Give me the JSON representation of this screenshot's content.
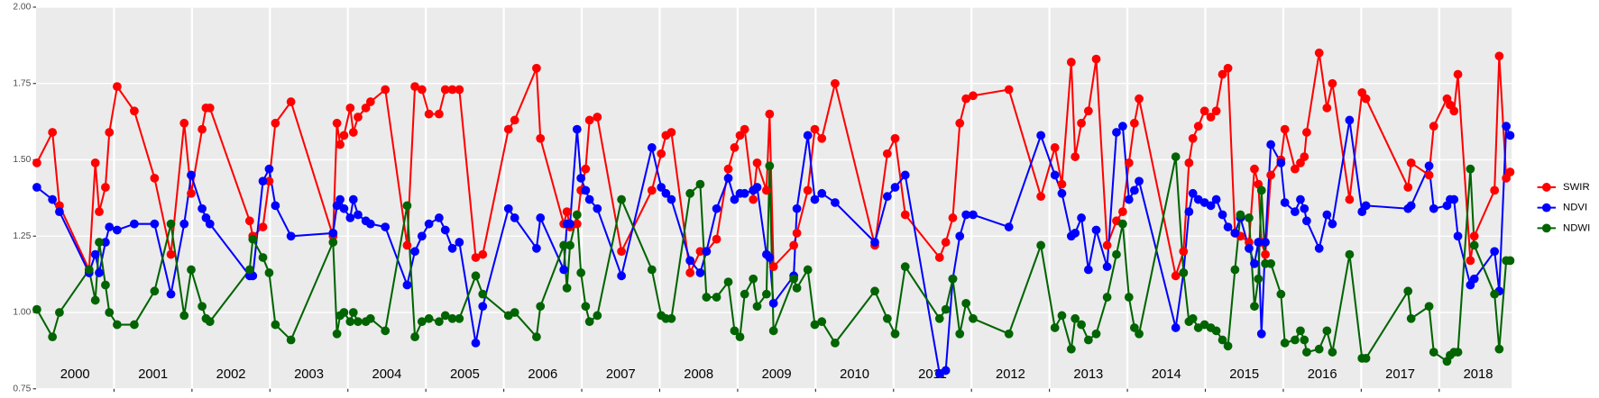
{
  "chart_data": {
    "type": "line",
    "x": [
      2000.01,
      2000.21,
      2000.3,
      2000.68,
      2000.76,
      2000.81,
      2000.89,
      2000.94,
      2001.04,
      2001.26,
      2001.52,
      2001.73,
      2001.9,
      2001.99,
      2002.13,
      2002.18,
      2002.23,
      2002.74,
      2002.78,
      2002.91,
      2002.99,
      2003.07,
      2003.27,
      2003.81,
      2003.86,
      2003.9,
      2003.95,
      2004.03,
      2004.07,
      2004.13,
      2004.23,
      2004.29,
      2004.48,
      2004.76,
      2004.86,
      2004.95,
      2005.04,
      2005.17,
      2005.25,
      2005.34,
      2005.43,
      2005.64,
      2005.73,
      2006.06,
      2006.14,
      2006.42,
      2006.47,
      2006.77,
      2006.81,
      2006.85,
      2006.94,
      2006.99,
      2007.05,
      2007.1,
      2007.2,
      2007.51,
      2007.9,
      2008.02,
      2008.08,
      2008.15,
      2008.39,
      2008.52,
      2008.6,
      2008.73,
      2008.88,
      2008.96,
      2009.03,
      2009.09,
      2009.2,
      2009.25,
      2009.37,
      2009.41,
      2009.46,
      2009.72,
      2009.76,
      2009.9,
      2009.99,
      2010.08,
      2010.25,
      2010.76,
      2010.92,
      2011.02,
      2011.15,
      2011.59,
      2011.67,
      2011.76,
      2011.85,
      2011.93,
      2012.02,
      2012.48,
      2012.89,
      2013.07,
      2013.16,
      2013.28,
      2013.33,
      2013.41,
      2013.5,
      2013.6,
      2013.74,
      2013.86,
      2013.94,
      2014.02,
      2014.09,
      2014.15,
      2014.62,
      2014.72,
      2014.79,
      2014.84,
      2014.91,
      2014.99,
      2015.07,
      2015.14,
      2015.22,
      2015.29,
      2015.38,
      2015.45,
      2015.56,
      2015.63,
      2015.68,
      2015.72,
      2015.77,
      2015.84,
      2015.97,
      2016.02,
      2016.15,
      2016.22,
      2016.27,
      2016.3,
      2016.46,
      2016.56,
      2016.63,
      2016.85,
      2017.01,
      2017.06,
      2017.6,
      2017.64,
      2017.87,
      2017.93,
      2018.1,
      2018.14,
      2018.19,
      2018.24,
      2018.4,
      2018.45,
      2018.71,
      2018.77,
      2018.86,
      2018.91
    ],
    "series": [
      {
        "name": "SWIR",
        "color": "#ff0000",
        "values": [
          1.49,
          1.59,
          1.35,
          1.14,
          1.49,
          1.33,
          1.41,
          1.59,
          1.74,
          1.66,
          1.44,
          1.19,
          1.62,
          1.39,
          1.6,
          1.67,
          1.67,
          1.3,
          1.25,
          1.28,
          1.43,
          1.62,
          1.69,
          1.25,
          1.62,
          1.55,
          1.58,
          1.67,
          1.59,
          1.64,
          1.67,
          1.69,
          1.73,
          1.22,
          1.74,
          1.73,
          1.65,
          1.65,
          1.73,
          1.73,
          1.73,
          1.18,
          1.19,
          1.6,
          1.63,
          1.8,
          1.57,
          1.29,
          1.33,
          1.28,
          1.29,
          1.4,
          1.47,
          1.63,
          1.64,
          1.2,
          1.4,
          1.52,
          1.58,
          1.59,
          1.13,
          1.2,
          1.2,
          1.24,
          1.47,
          1.54,
          1.58,
          1.6,
          1.37,
          1.49,
          1.4,
          1.65,
          1.15,
          1.22,
          1.26,
          1.4,
          1.6,
          1.57,
          1.75,
          1.22,
          1.52,
          1.57,
          1.32,
          1.18,
          1.23,
          1.31,
          1.62,
          1.7,
          1.71,
          1.73,
          1.38,
          1.54,
          1.42,
          1.82,
          1.51,
          1.62,
          1.66,
          1.83,
          1.22,
          1.3,
          1.33,
          1.49,
          1.62,
          1.7,
          1.12,
          1.2,
          1.49,
          1.57,
          1.61,
          1.66,
          1.64,
          1.66,
          1.78,
          1.8,
          1.26,
          1.25,
          1.23,
          1.47,
          1.42,
          1.23,
          1.19,
          1.45,
          1.5,
          1.6,
          1.47,
          1.49,
          1.51,
          1.59,
          1.85,
          1.67,
          1.75,
          1.37,
          1.72,
          1.7,
          1.41,
          1.49,
          1.45,
          1.61,
          1.7,
          1.68,
          1.66,
          1.78,
          1.17,
          1.25,
          1.4,
          1.84,
          1.44,
          1.46
        ]
      },
      {
        "name": "NDVI",
        "color": "#0000ff",
        "values": [
          1.41,
          1.37,
          1.33,
          1.13,
          1.19,
          1.13,
          1.23,
          1.28,
          1.27,
          1.29,
          1.29,
          1.06,
          1.29,
          1.45,
          1.34,
          1.31,
          1.29,
          1.12,
          1.12,
          1.43,
          1.47,
          1.35,
          1.25,
          1.26,
          1.35,
          1.37,
          1.34,
          1.31,
          1.37,
          1.32,
          1.3,
          1.29,
          1.28,
          1.09,
          1.2,
          1.25,
          1.29,
          1.31,
          1.27,
          1.21,
          1.23,
          0.9,
          1.02,
          1.34,
          1.31,
          1.21,
          1.31,
          1.14,
          1.29,
          1.29,
          1.6,
          1.44,
          1.4,
          1.37,
          1.34,
          1.12,
          1.54,
          1.41,
          1.39,
          1.37,
          1.17,
          1.13,
          1.2,
          1.34,
          1.44,
          1.37,
          1.39,
          1.39,
          1.4,
          1.41,
          1.19,
          1.18,
          1.03,
          1.12,
          1.34,
          1.58,
          1.37,
          1.39,
          1.36,
          1.23,
          1.38,
          1.41,
          1.45,
          0.8,
          0.81,
          1.11,
          1.25,
          1.32,
          1.32,
          1.28,
          1.58,
          1.45,
          1.39,
          1.25,
          1.26,
          1.31,
          1.14,
          1.27,
          1.15,
          1.59,
          1.61,
          1.37,
          1.4,
          1.43,
          0.95,
          1.13,
          1.33,
          1.39,
          1.37,
          1.36,
          1.35,
          1.37,
          1.32,
          1.28,
          1.26,
          1.31,
          1.21,
          1.16,
          1.23,
          0.93,
          1.23,
          1.55,
          1.49,
          1.36,
          1.33,
          1.37,
          1.34,
          1.3,
          1.21,
          1.32,
          1.29,
          1.63,
          1.33,
          1.35,
          1.34,
          1.35,
          1.48,
          1.34,
          1.35,
          1.37,
          1.37,
          1.25,
          1.09,
          1.11,
          1.2,
          1.07,
          1.61,
          1.58
        ]
      },
      {
        "name": "NDWI",
        "color": "#006400",
        "values": [
          1.01,
          0.92,
          1.0,
          1.14,
          1.04,
          1.23,
          1.09,
          1.0,
          0.96,
          0.96,
          1.07,
          1.29,
          0.99,
          1.14,
          1.02,
          0.98,
          0.97,
          1.14,
          1.24,
          1.18,
          1.13,
          0.96,
          0.91,
          1.23,
          0.93,
          0.99,
          1.0,
          0.97,
          1.0,
          0.97,
          0.97,
          0.98,
          0.94,
          1.35,
          0.92,
          0.97,
          0.98,
          0.97,
          0.99,
          0.98,
          0.98,
          1.12,
          1.06,
          0.99,
          1.0,
          0.92,
          1.02,
          1.22,
          1.08,
          1.22,
          1.32,
          1.13,
          1.02,
          0.97,
          0.99,
          1.37,
          1.14,
          0.99,
          0.98,
          0.98,
          1.39,
          1.42,
          1.05,
          1.05,
          1.1,
          0.94,
          0.92,
          1.06,
          1.11,
          1.02,
          1.06,
          1.48,
          0.94,
          1.11,
          1.08,
          1.14,
          0.96,
          0.97,
          0.9,
          1.07,
          0.98,
          0.93,
          1.15,
          0.98,
          1.01,
          1.11,
          0.93,
          1.03,
          0.98,
          0.93,
          1.22,
          0.95,
          0.99,
          0.88,
          0.98,
          0.96,
          0.91,
          0.93,
          1.05,
          1.19,
          1.29,
          1.05,
          0.95,
          0.93,
          1.51,
          1.13,
          0.97,
          0.98,
          0.95,
          0.96,
          0.95,
          0.94,
          0.91,
          0.89,
          1.14,
          1.32,
          1.31,
          1.02,
          1.11,
          1.4,
          1.16,
          1.16,
          1.06,
          0.9,
          0.91,
          0.94,
          0.91,
          0.87,
          0.88,
          0.94,
          0.87,
          1.19,
          0.85,
          0.85,
          1.07,
          0.98,
          1.02,
          0.87,
          0.84,
          0.86,
          0.87,
          0.87,
          1.47,
          1.22,
          1.06,
          0.88,
          1.17,
          1.17
        ]
      }
    ],
    "xlim": [
      2000,
      2018.93
    ],
    "xticks": [
      2001,
      2002,
      2003,
      2004,
      2005,
      2006,
      2007,
      2008,
      2009,
      2010,
      2011,
      2012,
      2013,
      2014,
      2015,
      2016,
      2017,
      2018
    ],
    "year_labels": [
      "2000",
      "2001",
      "2002",
      "2003",
      "2004",
      "2005",
      "2006",
      "2007",
      "2008",
      "2009",
      "2010",
      "2011",
      "2012",
      "2013",
      "2014",
      "2015",
      "2016",
      "2017",
      "2018"
    ],
    "ylim": [
      0.75,
      2.0
    ],
    "yticks": [
      {
        "value": 0.75,
        "label": "0.75"
      },
      {
        "value": 1.0,
        "label": "1.00"
      },
      {
        "value": 1.25,
        "label": "1.25"
      },
      {
        "value": 1.5,
        "label": "1.50"
      },
      {
        "value": 1.75,
        "label": "1.75"
      },
      {
        "value": 2.0,
        "label": "2.00"
      }
    ],
    "grid": true,
    "legend": "right"
  }
}
